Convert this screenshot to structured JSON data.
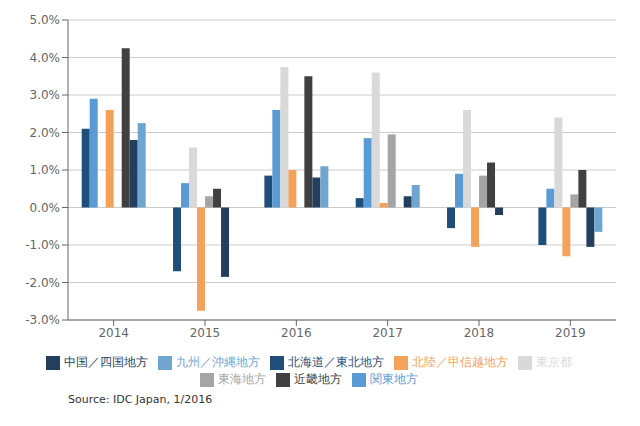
{
  "chart_data": {
    "type": "bar",
    "categories": [
      "2014",
      "2015",
      "2016",
      "2017",
      "2018",
      "2019"
    ],
    "series": [
      {
        "name": "北海道／東北地方",
        "color": "#1f4e79",
        "values": [
          2.1,
          -1.7,
          0.85,
          0.25,
          -0.55,
          -1.0
        ]
      },
      {
        "name": "関東地方",
        "color": "#5b9bd5",
        "values": [
          2.9,
          0.65,
          2.6,
          1.85,
          0.9,
          0.5
        ]
      },
      {
        "name": "東京都",
        "color": "#d9d9d9",
        "values": [
          0.0,
          1.6,
          3.75,
          3.6,
          2.6,
          2.4
        ]
      },
      {
        "name": "北陸／甲信越地方",
        "color": "#f4a25a",
        "values": [
          2.6,
          -2.75,
          1.0,
          0.12,
          -1.05,
          -1.3
        ]
      },
      {
        "name": "東海地方",
        "color": "#a5a5a5",
        "values": [
          0.0,
          0.3,
          0.0,
          1.95,
          0.85,
          0.35
        ]
      },
      {
        "name": "近畿地方",
        "color": "#404040",
        "values": [
          4.25,
          0.5,
          3.5,
          0.0,
          1.2,
          1.0
        ]
      },
      {
        "name": "中国／四国地方",
        "color": "#243f5e",
        "values": [
          1.8,
          -1.85,
          0.8,
          0.3,
          -0.2,
          -1.05
        ]
      },
      {
        "name": "九州／沖縄地方",
        "color": "#70a5d0",
        "values": [
          2.25,
          0.0,
          1.1,
          0.6,
          0.0,
          -0.65
        ]
      }
    ],
    "ylim": [
      -3.0,
      5.0
    ],
    "yticks": [
      {
        "value": -3.0,
        "label": "-3.0%"
      },
      {
        "value": -2.0,
        "label": "-2.0%"
      },
      {
        "value": -1.0,
        "label": "-1.0%"
      },
      {
        "value": 0.0,
        "label": "0.0%"
      },
      {
        "value": 1.0,
        "label": "1.0%"
      },
      {
        "value": 2.0,
        "label": "2.0%"
      },
      {
        "value": 3.0,
        "label": "3.0%"
      },
      {
        "value": 4.0,
        "label": "4.0%"
      },
      {
        "value": 5.0,
        "label": "5.0%"
      }
    ],
    "grid": true,
    "legend": "bottom",
    "annotations": [
      "Source: IDC Japan, 1/2016"
    ]
  }
}
